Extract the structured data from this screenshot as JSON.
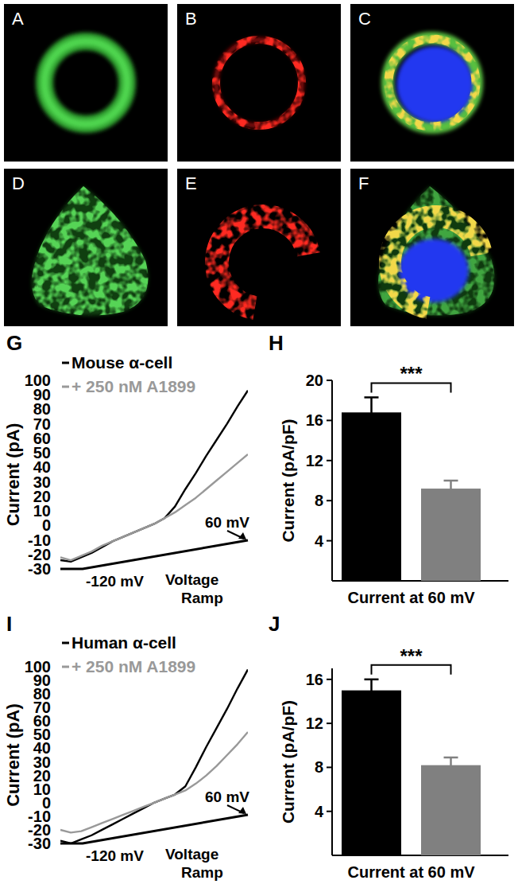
{
  "image_panels": [
    "A",
    "B",
    "C",
    "D",
    "E",
    "F"
  ],
  "chart_data": [
    {
      "panel_label": "G",
      "type": "line",
      "x": [
        -120,
        -110,
        -100,
        -90,
        -80,
        -70,
        -60,
        -50,
        -40,
        -30,
        -20,
        -10,
        0,
        10,
        20,
        30,
        40,
        50,
        60
      ],
      "xlim": [
        -120,
        60
      ],
      "ylim": [
        -30,
        100
      ],
      "yticks": [
        100,
        90,
        80,
        70,
        60,
        50,
        40,
        30,
        20,
        10,
        0,
        -10,
        -20,
        -30
      ],
      "y_label": "Current (pA)",
      "tick_labels": "y",
      "legend": "upper left",
      "series": [
        {
          "name": "Mouse α-cell",
          "color": "#000000",
          "values": [
            -24,
            -25,
            -22,
            -19,
            -15,
            -11,
            -8,
            -5,
            -2,
            1,
            5,
            13,
            25,
            36,
            48,
            59,
            70,
            82,
            93
          ]
        },
        {
          "name": "+ 250 nM A1899",
          "color": "#999999",
          "values": [
            -22,
            -24,
            -21,
            -18,
            -14,
            -11,
            -8,
            -5,
            -2,
            1,
            5,
            9,
            14,
            19,
            25,
            31,
            37,
            43,
            49
          ]
        }
      ],
      "annotations": [
        "-120 mV",
        "Voltage Ramp",
        "60 mV"
      ]
    },
    {
      "panel_label": "H",
      "type": "bar",
      "categories": [
        null,
        null
      ],
      "values": [
        16.8,
        9.2
      ],
      "errors": [
        1.5,
        0.8
      ],
      "colors": [
        "#000000",
        "#808080"
      ],
      "ylim": [
        0,
        20
      ],
      "yticks": [
        4,
        8,
        12,
        16,
        20
      ],
      "y_label": "Current (pA/pF)",
      "x_label": "Current at 60 mV",
      "annotations": [
        "***"
      ]
    },
    {
      "panel_label": "I",
      "type": "line",
      "x": [
        -120,
        -110,
        -100,
        -90,
        -80,
        -70,
        -60,
        -50,
        -40,
        -30,
        -20,
        -10,
        0,
        10,
        20,
        30,
        40,
        50,
        60
      ],
      "xlim": [
        -120,
        60
      ],
      "ylim": [
        -30,
        100
      ],
      "yticks": [
        100,
        90,
        80,
        70,
        60,
        50,
        40,
        30,
        20,
        10,
        0,
        -10,
        -20,
        -30
      ],
      "y_label": "Current (pA)",
      "tick_labels": "y",
      "legend": "upper left",
      "series": [
        {
          "name": "Human α-cell",
          "color": "#000000",
          "values": [
            -28,
            -30,
            -27,
            -24,
            -20,
            -16,
            -12,
            -8,
            -4,
            0,
            3,
            6,
            12,
            26,
            41,
            55,
            69,
            84,
            98
          ]
        },
        {
          "name": "+ 250 nM A1899",
          "color": "#999999",
          "values": [
            -20,
            -22,
            -21,
            -18,
            -15,
            -12,
            -9,
            -6,
            -3,
            0,
            3,
            6,
            9,
            14,
            20,
            27,
            35,
            43,
            52
          ]
        }
      ],
      "annotations": [
        "-120 mV",
        "Voltage Ramp",
        "60 mV"
      ]
    },
    {
      "panel_label": "J",
      "type": "bar",
      "categories": [
        null,
        null
      ],
      "values": [
        15.0,
        8.2
      ],
      "errors": [
        1.0,
        0.7
      ],
      "colors": [
        "#000000",
        "#808080"
      ],
      "ylim": [
        0,
        17
      ],
      "yticks": [
        4,
        8,
        12,
        16
      ],
      "y_label": "Current (pA/pF)",
      "x_label": "Current at 60 mV",
      "annotations": [
        "***"
      ]
    }
  ]
}
